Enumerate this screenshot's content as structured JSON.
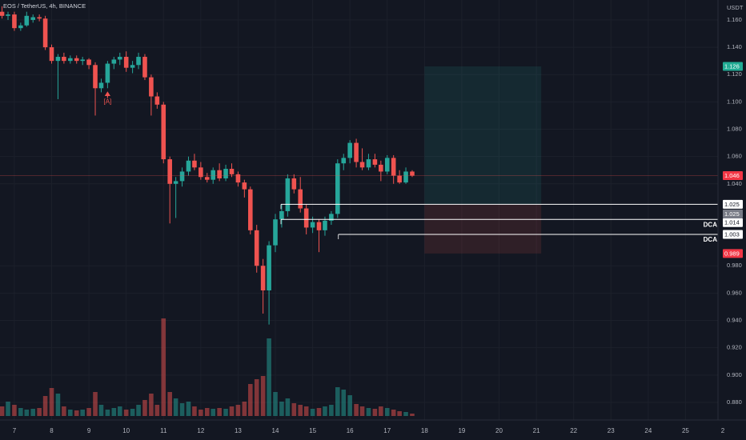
{
  "chart_data": {
    "type": "candlestick",
    "title": "EOS / TetherUS, 4h, BINANCE",
    "y_unit": "USDT",
    "colors": {
      "up": "#26a69a",
      "down": "#ef5350",
      "background": "#131722",
      "grid": "#1c202b"
    },
    "grid": true,
    "x": [
      6.67,
      6.83,
      7.0,
      7.17,
      7.33,
      7.5,
      7.67,
      7.83,
      8.0,
      8.17,
      8.33,
      8.5,
      8.67,
      8.83,
      9.0,
      9.17,
      9.33,
      9.5,
      9.67,
      9.83,
      10.0,
      10.17,
      10.33,
      10.5,
      10.67,
      10.83,
      11.0,
      11.17,
      11.33,
      11.5,
      11.67,
      11.83,
      12.0,
      12.17,
      12.33,
      12.5,
      12.67,
      12.83,
      13.0,
      13.17,
      13.33,
      13.5,
      13.67,
      13.83,
      14.0,
      14.17,
      14.33,
      14.5,
      14.67,
      14.83,
      15.0,
      15.17,
      15.33,
      15.5,
      15.67,
      15.83,
      16.0,
      16.17,
      16.33,
      16.5,
      16.67,
      16.83,
      17.0,
      17.17,
      17.33,
      17.5,
      17.67
    ],
    "open": [
      1.166,
      1.163,
      1.164,
      1.154,
      1.156,
      1.16,
      1.162,
      1.161,
      1.14,
      1.13,
      1.133,
      1.13,
      1.132,
      1.13,
      1.131,
      1.127,
      1.11,
      1.114,
      1.128,
      1.131,
      1.133,
      1.125,
      1.127,
      1.133,
      1.118,
      1.104,
      1.098,
      1.058,
      1.04,
      1.042,
      1.049,
      1.057,
      1.052,
      1.045,
      1.043,
      1.05,
      1.044,
      1.051,
      1.047,
      1.041,
      1.036,
      1.006,
      0.98,
      0.962,
      0.995,
      1.014,
      1.02,
      1.044,
      1.036,
      1.022,
      1.008,
      1.012,
      1.006,
      1.013,
      1.018,
      1.055,
      1.059,
      1.07,
      1.056,
      1.052,
      1.058,
      1.054,
      1.049,
      1.059,
      1.046,
      1.041,
      1.049
    ],
    "high": [
      1.17,
      1.166,
      1.166,
      1.158,
      1.166,
      1.164,
      1.164,
      1.163,
      1.142,
      1.135,
      1.136,
      1.134,
      1.134,
      1.133,
      1.132,
      1.129,
      1.117,
      1.13,
      1.133,
      1.136,
      1.137,
      1.13,
      1.136,
      1.135,
      1.12,
      1.107,
      1.1,
      1.06,
      1.045,
      1.052,
      1.06,
      1.062,
      1.056,
      1.048,
      1.052,
      1.055,
      1.054,
      1.055,
      1.049,
      1.043,
      1.038,
      1.01,
      0.985,
      0.998,
      1.018,
      1.025,
      1.047,
      1.047,
      1.045,
      1.025,
      1.016,
      1.014,
      1.016,
      1.02,
      1.058,
      1.062,
      1.072,
      1.073,
      1.066,
      1.062,
      1.062,
      1.057,
      1.061,
      1.061,
      1.05,
      1.052,
      1.05
    ],
    "low": [
      1.161,
      1.16,
      1.152,
      1.152,
      1.155,
      1.158,
      1.159,
      1.138,
      1.128,
      1.102,
      1.128,
      1.128,
      1.128,
      1.127,
      1.124,
      1.09,
      1.107,
      1.11,
      1.124,
      1.127,
      1.122,
      1.121,
      1.124,
      1.116,
      1.09,
      1.095,
      1.055,
      1.011,
      1.015,
      1.038,
      1.046,
      1.05,
      1.043,
      1.041,
      1.04,
      1.042,
      1.042,
      1.045,
      1.038,
      1.03,
      1.003,
      0.975,
      0.945,
      0.937,
      0.99,
      1.008,
      1.016,
      1.033,
      1.019,
      1.003,
      1.004,
      0.99,
      1.002,
      1.01,
      1.015,
      1.05,
      1.055,
      1.052,
      1.05,
      1.05,
      1.052,
      1.042,
      1.047,
      1.04,
      1.04,
      1.04,
      1.045
    ],
    "close": [
      1.163,
      1.164,
      1.154,
      1.156,
      1.163,
      1.162,
      1.161,
      1.14,
      1.13,
      1.133,
      1.13,
      1.132,
      1.13,
      1.131,
      1.127,
      1.11,
      1.114,
      1.128,
      1.131,
      1.133,
      1.125,
      1.127,
      1.133,
      1.118,
      1.104,
      1.098,
      1.058,
      1.04,
      1.042,
      1.049,
      1.057,
      1.052,
      1.045,
      1.043,
      1.05,
      1.044,
      1.051,
      1.047,
      1.041,
      1.036,
      1.006,
      0.98,
      0.962,
      0.995,
      1.014,
      1.02,
      1.044,
      1.036,
      1.022,
      1.008,
      1.012,
      1.006,
      1.013,
      1.018,
      1.055,
      1.059,
      1.07,
      1.056,
      1.052,
      1.058,
      1.054,
      1.049,
      1.059,
      1.046,
      1.041,
      1.049,
      1.046
    ],
    "volume": [
      12,
      18,
      14,
      10,
      8,
      9,
      10,
      25,
      35,
      28,
      12,
      8,
      7,
      8,
      10,
      30,
      14,
      8,
      10,
      12,
      8,
      9,
      14,
      20,
      28,
      14,
      122,
      30,
      22,
      16,
      18,
      12,
      8,
      10,
      9,
      10,
      9,
      12,
      14,
      18,
      40,
      46,
      50,
      97,
      30,
      18,
      22,
      16,
      14,
      12,
      9,
      10,
      12,
      14,
      36,
      33,
      26,
      15,
      12,
      10,
      9,
      12,
      10,
      8,
      6,
      5,
      3
    ],
    "xlim": [
      6.615,
      26
    ],
    "ylim": [
      0.8671,
      1.1746
    ],
    "xticks": [
      7,
      8,
      9,
      10,
      11,
      12,
      13,
      14,
      15,
      16,
      17,
      18,
      19,
      20,
      21,
      22,
      23,
      24,
      25,
      {
        "value": 26,
        "label": "2"
      }
    ],
    "yticks": [
      {
        "value": 1.16,
        "label": "1.160"
      },
      {
        "value": 1.14,
        "label": "1.140"
      },
      {
        "value": 1.12,
        "label": "1.120"
      },
      {
        "value": 1.1,
        "label": "1.100"
      },
      {
        "value": 1.08,
        "label": "1.080"
      },
      {
        "value": 1.06,
        "label": "1.060"
      },
      {
        "value": 1.04,
        "label": "1.040"
      },
      {
        "value": 0.98,
        "label": "0.980"
      },
      {
        "value": 0.96,
        "label": "0.960"
      },
      {
        "value": 0.94,
        "label": "0.940"
      },
      {
        "value": 0.92,
        "label": "0.920"
      },
      {
        "value": 0.9,
        "label": "0.900"
      },
      {
        "value": 0.88,
        "label": "0.880"
      }
    ],
    "current_price": 1.046,
    "position": {
      "target": 1.126,
      "entry": 1.025,
      "stop": 0.989,
      "start": 18,
      "end": 21.13
    },
    "levels": [
      {
        "value": 1.025,
        "start": 14.15
      },
      {
        "value": 1.014,
        "start": 14.15,
        "label": "DCA"
      },
      {
        "value": 1.003,
        "start": 15.69,
        "label": "DCA"
      }
    ],
    "annotations": [
      {
        "text": "[A]",
        "x": 9.5,
        "y": 1.1
      }
    ]
  }
}
